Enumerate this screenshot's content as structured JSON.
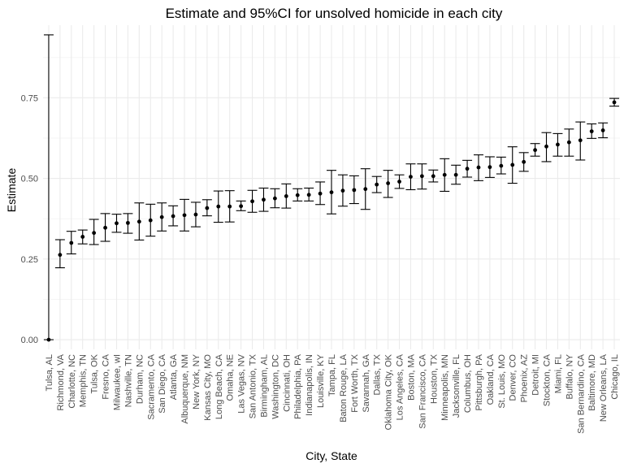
{
  "chart_data": {
    "type": "scatter",
    "title": "Estimate and 95%CI for unsolved homicide in each city",
    "xlabel": "City, State",
    "ylabel": "Estimate",
    "ylim": [
      -0.03,
      0.975
    ],
    "yticks": [
      "0.00",
      "0.25",
      "0.50",
      "0.75"
    ],
    "ytick_values": [
      0.0,
      0.25,
      0.5,
      0.75
    ],
    "grid": true,
    "legend": "none",
    "colors": {
      "point": "#000000",
      "errorbar": "#000000",
      "grid_major": "#ebebeb",
      "grid_minor": "#f5f5f5",
      "background": "#ffffff"
    },
    "categories": [
      "Tulsa, AL",
      "Richmond, VA",
      "Charlotte, NC",
      "Memphis, TN",
      "Tulsa, OK",
      "Fresno, CA",
      "Milwaukee, wI",
      "Nashville, TN",
      "Durham, NC",
      "Sacramento, CA",
      "San Diego, CA",
      "Atlanta, GA",
      "Albuquerque, NM",
      "New York, NY",
      "Kansas City, MO",
      "Long Beach, CA",
      "Omaha, NE",
      "Las Vegas, NV",
      "San Antonio, TX",
      "Birmingham, AL",
      "Washington, DC",
      "Cincinnati, OH",
      "Philadelphia, PA",
      "Indianapolis, IN",
      "Louisville, KY",
      "Tampa, FL",
      "Baton Rouge, LA",
      "Fort Worth, TX",
      "Savannah, GA",
      "Dallas, TX",
      "Oklahoma City, OK",
      "Los Angeles, CA",
      "Boston, MA",
      "San Francisco, CA",
      "Houston, TX",
      "Minneapolis, MN",
      "Jacksonville, FL",
      "Columbus, OH",
      "Pittsburgh, PA",
      "Oakland, CA",
      "St. Louis, MO",
      "Denver, CO",
      "Phoenix, AZ",
      "Detroit, MI",
      "Stockton, CA",
      "Miami, FL",
      "Buffalo, NY",
      "San Bernardino, CA",
      "Baltimore, MD",
      "New Orleans, LA",
      "Chicago, IL"
    ],
    "estimate": [
      0.0,
      0.263,
      0.3,
      0.319,
      0.331,
      0.347,
      0.361,
      0.362,
      0.366,
      0.37,
      0.38,
      0.383,
      0.386,
      0.388,
      0.408,
      0.413,
      0.413,
      0.414,
      0.429,
      0.434,
      0.438,
      0.445,
      0.448,
      0.449,
      0.453,
      0.457,
      0.462,
      0.464,
      0.467,
      0.481,
      0.485,
      0.49,
      0.505,
      0.507,
      0.507,
      0.511,
      0.511,
      0.53,
      0.534,
      0.535,
      0.539,
      0.542,
      0.551,
      0.588,
      0.599,
      0.605,
      0.612,
      0.618,
      0.646,
      0.649,
      0.736
    ],
    "conf_low": [
      0.0,
      0.223,
      0.266,
      0.297,
      0.295,
      0.305,
      0.333,
      0.33,
      0.309,
      0.321,
      0.337,
      0.353,
      0.337,
      0.35,
      0.384,
      0.364,
      0.365,
      0.4,
      0.395,
      0.398,
      0.409,
      0.408,
      0.43,
      0.43,
      0.419,
      0.39,
      0.414,
      0.422,
      0.404,
      0.456,
      0.441,
      0.469,
      0.465,
      0.467,
      0.489,
      0.46,
      0.482,
      0.504,
      0.493,
      0.503,
      0.514,
      0.485,
      0.522,
      0.569,
      0.552,
      0.569,
      0.569,
      0.557,
      0.624,
      0.626,
      0.724
    ],
    "conf_high": [
      0.945,
      0.31,
      0.336,
      0.34,
      0.373,
      0.391,
      0.389,
      0.391,
      0.424,
      0.42,
      0.424,
      0.415,
      0.435,
      0.426,
      0.434,
      0.461,
      0.462,
      0.43,
      0.463,
      0.47,
      0.468,
      0.483,
      0.468,
      0.47,
      0.489,
      0.525,
      0.511,
      0.508,
      0.53,
      0.506,
      0.525,
      0.511,
      0.545,
      0.545,
      0.526,
      0.561,
      0.541,
      0.556,
      0.573,
      0.567,
      0.566,
      0.598,
      0.58,
      0.608,
      0.642,
      0.639,
      0.653,
      0.675,
      0.669,
      0.672,
      0.748
    ]
  }
}
